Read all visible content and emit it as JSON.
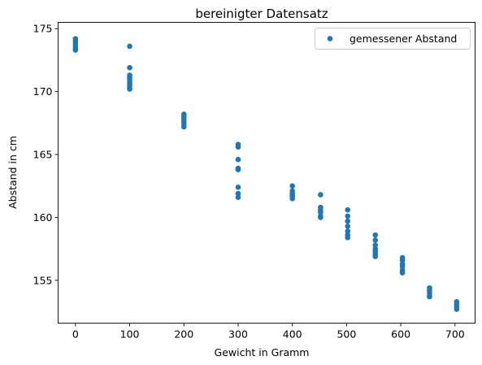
{
  "chart_data": {
    "type": "scatter",
    "title": "bereinigter Datensatz",
    "xlabel": "Gewicht in Gramm",
    "ylabel": "Abstand in cm",
    "xlim": [
      -32,
      737
    ],
    "ylim": [
      151.6,
      175.5
    ],
    "xticks": [
      0,
      100,
      200,
      300,
      400,
      500,
      600,
      700
    ],
    "yticks": [
      155,
      160,
      165,
      170,
      175
    ],
    "grid": false,
    "legend_position": "top-right",
    "color": "#1f77b4",
    "series": [
      {
        "name": "gemessener Abstand",
        "points": [
          [
            0,
            174.2
          ],
          [
            0,
            174.0
          ],
          [
            0,
            173.8
          ],
          [
            0,
            173.6
          ],
          [
            0,
            173.4
          ],
          [
            0,
            173.3
          ],
          [
            100,
            173.6
          ],
          [
            100,
            171.9
          ],
          [
            100,
            171.3
          ],
          [
            100,
            171.1
          ],
          [
            100,
            170.9
          ],
          [
            100,
            170.7
          ],
          [
            100,
            170.5
          ],
          [
            100,
            170.3
          ],
          [
            100,
            170.2
          ],
          [
            200,
            168.2
          ],
          [
            200,
            168.0
          ],
          [
            200,
            167.8
          ],
          [
            200,
            167.6
          ],
          [
            200,
            167.4
          ],
          [
            200,
            167.2
          ],
          [
            300,
            165.8
          ],
          [
            300,
            165.6
          ],
          [
            300,
            164.6
          ],
          [
            300,
            163.9
          ],
          [
            300,
            163.8
          ],
          [
            300,
            162.4
          ],
          [
            300,
            161.9
          ],
          [
            300,
            161.6
          ],
          [
            400,
            162.5
          ],
          [
            400,
            162.1
          ],
          [
            400,
            161.9
          ],
          [
            400,
            161.7
          ],
          [
            400,
            161.5
          ],
          [
            452,
            161.8
          ],
          [
            452,
            160.8
          ],
          [
            452,
            160.6
          ],
          [
            452,
            160.4
          ],
          [
            452,
            160.1
          ],
          [
            452,
            160.0
          ],
          [
            502,
            160.6
          ],
          [
            502,
            160.1
          ],
          [
            502,
            159.7
          ],
          [
            502,
            159.3
          ],
          [
            502,
            158.9
          ],
          [
            502,
            158.6
          ],
          [
            502,
            158.4
          ],
          [
            553,
            158.6
          ],
          [
            553,
            158.2
          ],
          [
            553,
            157.8
          ],
          [
            553,
            157.5
          ],
          [
            553,
            157.3
          ],
          [
            553,
            157.1
          ],
          [
            553,
            156.9
          ],
          [
            603,
            156.8
          ],
          [
            603,
            156.6
          ],
          [
            603,
            156.3
          ],
          [
            603,
            156.1
          ],
          [
            603,
            155.8
          ],
          [
            603,
            155.6
          ],
          [
            653,
            154.4
          ],
          [
            653,
            154.2
          ],
          [
            653,
            154.0
          ],
          [
            653,
            153.8
          ],
          [
            653,
            153.7
          ],
          [
            703,
            153.3
          ],
          [
            703,
            153.1
          ],
          [
            703,
            152.9
          ],
          [
            703,
            152.7
          ]
        ]
      }
    ]
  }
}
